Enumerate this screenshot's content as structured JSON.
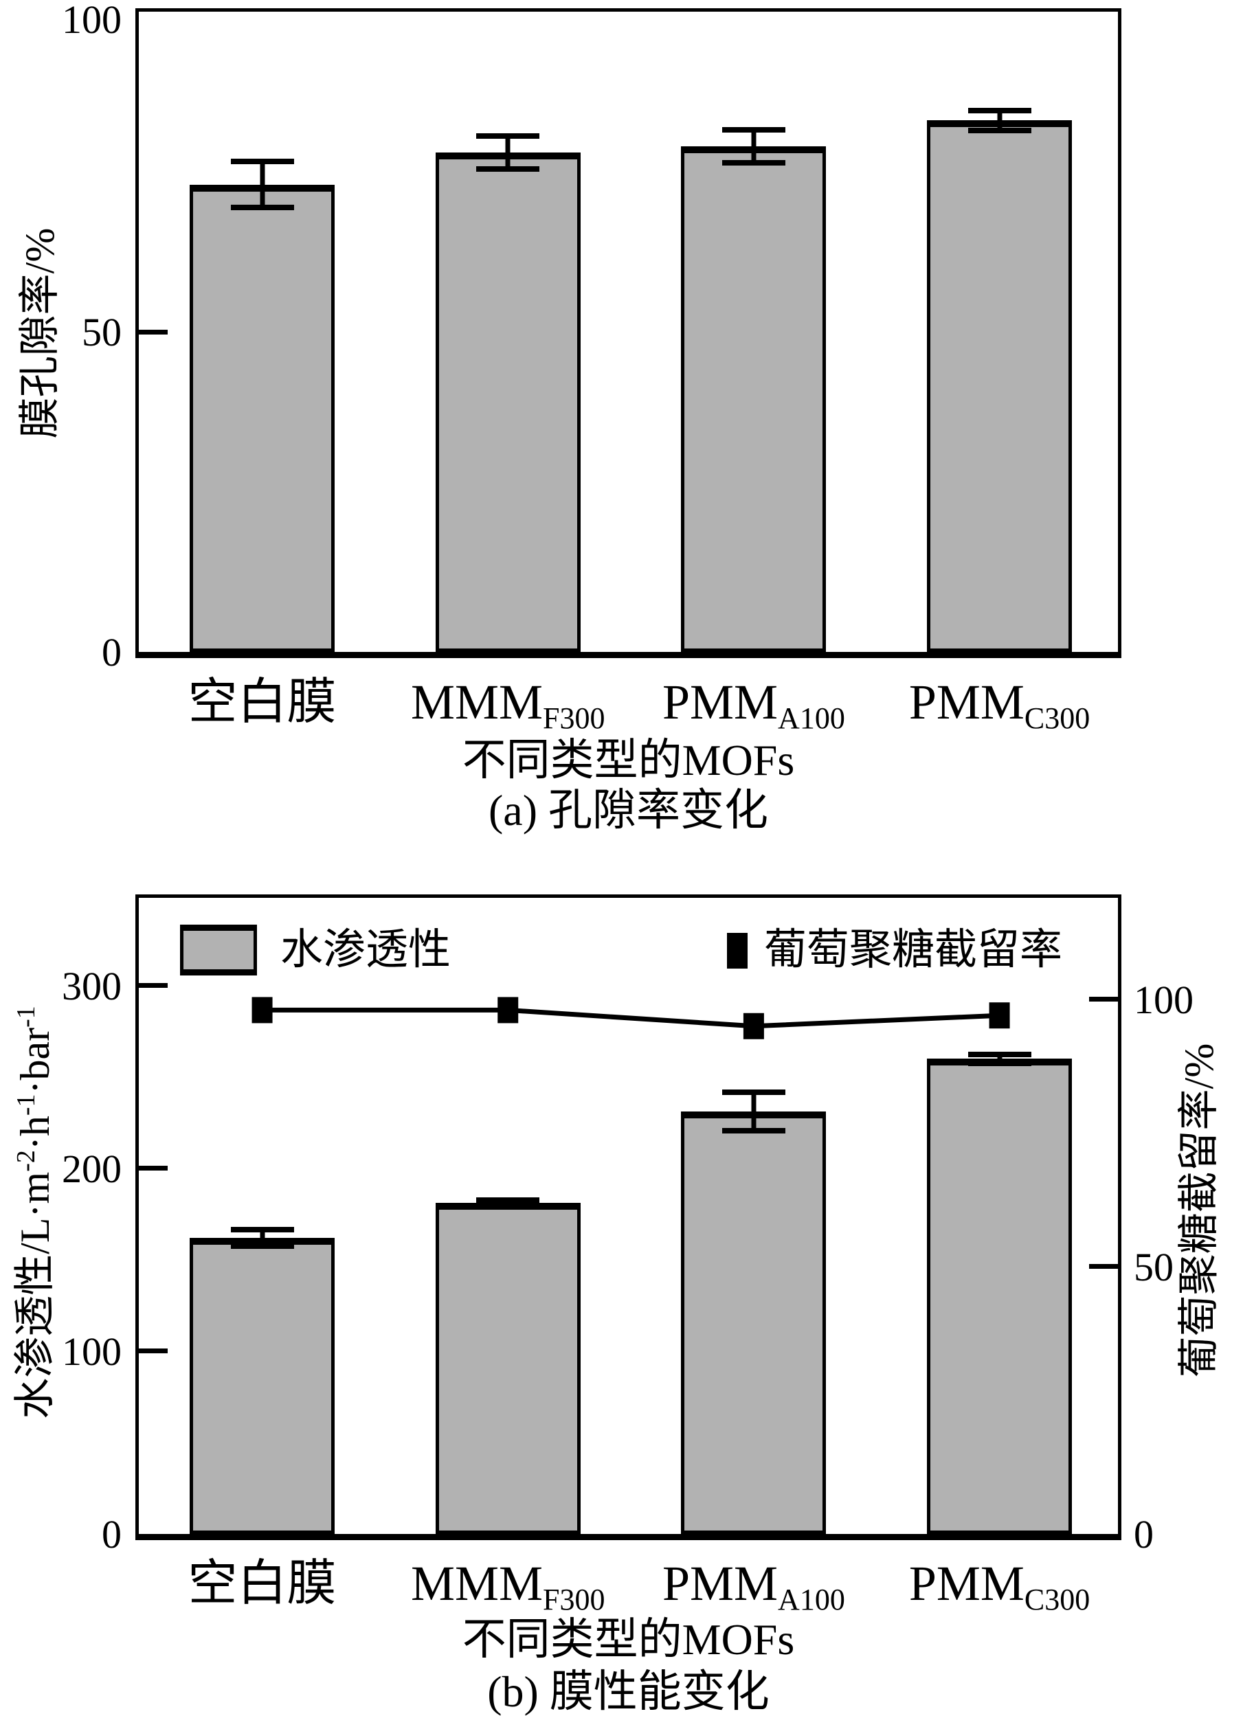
{
  "figure_caption_a": "(a) 孔隙率变化",
  "figure_caption_b": "(b) 膜性能变化",
  "labels": {
    "legend": {
      "bar": "水渗透性",
      "line": "葡萄聚糖截留率"
    },
    "b_left_axis_parts": [
      {
        "t": "水渗透性/L·m"
      },
      {
        "t": "-2",
        "sup": true
      },
      {
        "t": "·h"
      },
      {
        "t": "-1",
        "sup": true
      },
      {
        "t": "·bar"
      },
      {
        "t": "-1",
        "sup": true
      }
    ]
  },
  "categories_rich": [
    {
      "main": "空白膜",
      "sub": ""
    },
    {
      "main": "MMM",
      "sub": "F300"
    },
    {
      "main": "PMM",
      "sub": "A100"
    },
    {
      "main": "PMM",
      "sub": "C300"
    }
  ],
  "colors": {
    "bar_fill": "#b2b2b2",
    "line_and_marker": "#000000",
    "axis": "#000000"
  },
  "chart_data": [
    {
      "type": "bar",
      "panel": "a",
      "title": "(a) 孔隙率变化",
      "xlabel": "不同类型的MOFs",
      "ylabel": "膜孔隙率/%",
      "categories": [
        "空白膜",
        "MMM_F300",
        "PMM_A100",
        "PMM_C300"
      ],
      "values": [
        73,
        78,
        79,
        83
      ],
      "errors": [
        4,
        3,
        3,
        2
      ],
      "ylim": [
        0,
        100
      ],
      "yticks": [
        0,
        50,
        100
      ],
      "grid": false,
      "bar_color": "#b2b2b2"
    },
    {
      "type": "bar",
      "panel": "b",
      "title": "(b) 膜性能变化",
      "xlabel": "不同类型的MOFs",
      "ylabel_left": "水渗透性/L·m-2·h-1·bar-1",
      "ylabel_right": "葡萄聚糖截留率/%",
      "categories": [
        "空白膜",
        "MMM_F300",
        "PMM_A100",
        "PMM_C300"
      ],
      "series": [
        {
          "name": "水渗透性",
          "type": "bar",
          "axis": "left",
          "values": [
            162,
            181,
            231,
            260
          ],
          "errors": [
            6,
            3,
            12,
            4
          ],
          "color": "#b2b2b2"
        },
        {
          "name": "葡萄聚糖截留率",
          "type": "line",
          "marker": "square",
          "axis": "right",
          "values": [
            98,
            98,
            95,
            97
          ],
          "color": "#000000"
        }
      ],
      "ylim_left": [
        0,
        348
      ],
      "yticks_left": [
        0,
        100,
        200,
        300
      ],
      "ylim_right": [
        0,
        119
      ],
      "yticks_right": [
        0,
        50,
        100
      ],
      "grid": false,
      "legend_position": "top-inside"
    }
  ]
}
